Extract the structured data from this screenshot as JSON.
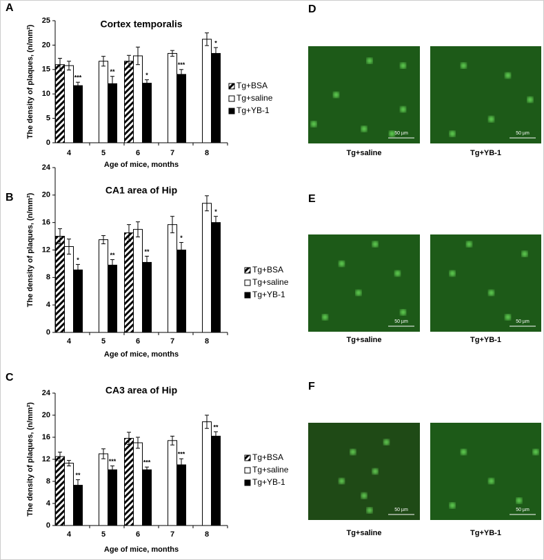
{
  "chart_data": [
    {
      "type": "bar",
      "letter": "A",
      "title": "Cortex temporalis",
      "x_label": "Age of mice, months",
      "y_label": "The density of plaques, (n/mm²)",
      "categories": [
        "4",
        "5",
        "6",
        "7",
        "8"
      ],
      "series": [
        {
          "name": "Tg+BSA",
          "color": "#000000",
          "hatch": true,
          "values": [
            16,
            null,
            16.7,
            null,
            null
          ],
          "errors": [
            1.3,
            null,
            1.2,
            null,
            null
          ]
        },
        {
          "name": "Tg+saline",
          "color": "#ffffff",
          "values": [
            15.8,
            16.7,
            17.8,
            18.3,
            21.2
          ],
          "errors": [
            0.9,
            1.0,
            1.8,
            0.6,
            1.3
          ]
        },
        {
          "name": "Tg+YB-1",
          "color": "#000000",
          "values": [
            11.7,
            12.1,
            12.2,
            14,
            18.3
          ],
          "errors": [
            0.7,
            1.5,
            0.7,
            1.0,
            1.2
          ]
        }
      ],
      "significance": [
        "***",
        "**",
        "*",
        "***",
        "*"
      ],
      "ylim": [
        0,
        25
      ],
      "yticks": [
        0,
        5,
        10,
        15,
        20,
        25
      ],
      "grid": false
    },
    {
      "type": "bar",
      "letter": "B",
      "title": "CA1 area of Hip",
      "x_label": "Age of mice, months",
      "y_label": "The density  of plaques, (n/mm²)",
      "categories": [
        "4",
        "5",
        "6",
        "7",
        "8"
      ],
      "series": [
        {
          "name": "Tg+BSA",
          "color": "#000000",
          "hatch": true,
          "values": [
            14,
            null,
            14.5,
            null,
            null
          ],
          "errors": [
            1.1,
            null,
            1.2,
            null,
            null
          ]
        },
        {
          "name": "Tg+saline",
          "color": "#ffffff",
          "values": [
            12.5,
            13.5,
            15,
            15.7,
            18.8
          ],
          "errors": [
            1.1,
            0.6,
            1.1,
            1.2,
            1.1
          ]
        },
        {
          "name": "Tg+YB-1",
          "color": "#000000",
          "values": [
            9.1,
            9.8,
            10.2,
            12,
            16
          ],
          "errors": [
            0.8,
            0.8,
            0.9,
            1.1,
            0.9
          ]
        }
      ],
      "significance": [
        "*",
        "**",
        "**",
        "*",
        "*"
      ],
      "ylim": [
        0,
        24
      ],
      "yticks": [
        0,
        4,
        8,
        12,
        16,
        20,
        24
      ],
      "grid": false
    },
    {
      "type": "bar",
      "letter": "C",
      "title": "CA3 area of Hip",
      "x_label": "Age of mice, months",
      "y_label": "The density of  plaques, (n/mm²)",
      "categories": [
        "4",
        "5",
        "6",
        "7",
        "8"
      ],
      "series": [
        {
          "name": "Tg+BSA",
          "color": "#000000",
          "hatch": true,
          "values": [
            12.5,
            null,
            15.8,
            null,
            null
          ],
          "errors": [
            0.8,
            null,
            1.1,
            null,
            null
          ]
        },
        {
          "name": "Tg+saline",
          "color": "#ffffff",
          "values": [
            11.3,
            13,
            15,
            15.4,
            18.8
          ],
          "errors": [
            0.5,
            0.9,
            1.0,
            0.8,
            1.2
          ]
        },
        {
          "name": "Tg+YB-1",
          "color": "#000000",
          "values": [
            7.3,
            10.1,
            10.1,
            11,
            16.2
          ],
          "errors": [
            1.0,
            0.7,
            0.5,
            1.1,
            0.8
          ]
        }
      ],
      "significance": [
        "**",
        "***",
        "***",
        "***",
        "**"
      ],
      "ylim": [
        0,
        24
      ],
      "yticks": [
        0,
        4,
        8,
        12,
        16,
        20,
        24
      ],
      "grid": false
    }
  ],
  "micrographs": [
    {
      "letter": "D",
      "images": [
        {
          "caption": "Tg+saline",
          "scale": "50 µm"
        },
        {
          "caption": "Tg+YB-1",
          "scale": "50 µm"
        }
      ]
    },
    {
      "letter": "E",
      "images": [
        {
          "caption": "Tg+saline",
          "scale": "50 µm"
        },
        {
          "caption": "Tg+YB-1",
          "scale": "50 µm"
        }
      ]
    },
    {
      "letter": "F",
      "images": [
        {
          "caption": "Tg+saline",
          "scale": "50 µm"
        },
        {
          "caption": "Tg+YB-1",
          "scale": "50 µm"
        }
      ]
    }
  ]
}
